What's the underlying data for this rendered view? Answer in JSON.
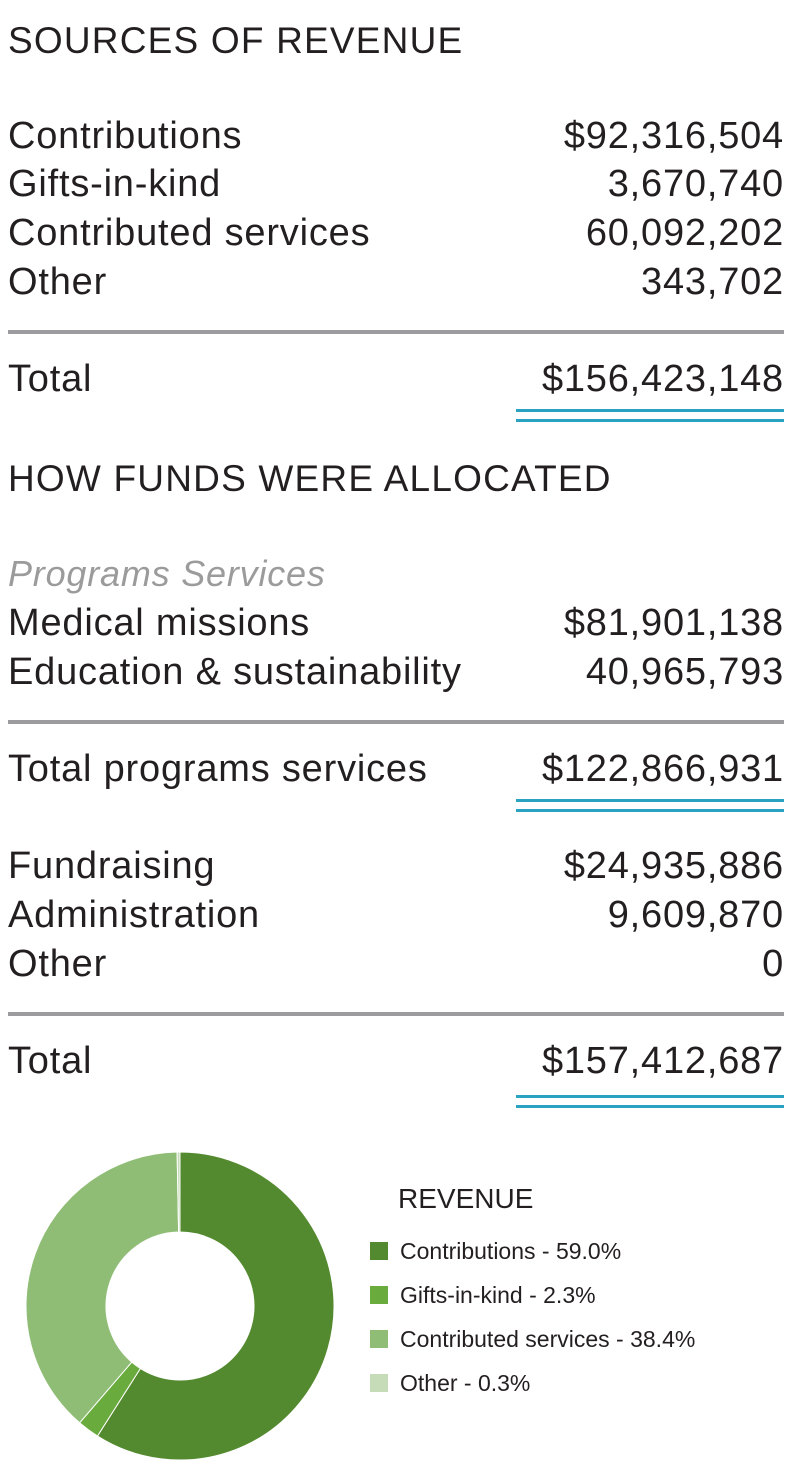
{
  "revenue_section": {
    "heading": "SOURCES OF REVENUE",
    "rows": [
      {
        "label": "Contributions",
        "value": "$92,316,504"
      },
      {
        "label": "Gifts-in-kind",
        "value": "3,670,740"
      },
      {
        "label": "Contributed services",
        "value": "60,092,202"
      },
      {
        "label": "Other",
        "value": "343,702"
      }
    ],
    "total_label": "Total",
    "total_value": "$156,423,148"
  },
  "allocation_section": {
    "heading": "HOW FUNDS WERE ALLOCATED",
    "subheading": "Programs Services",
    "program_rows": [
      {
        "label": "Medical missions",
        "value": "$81,901,138"
      },
      {
        "label": "Education & sustainability",
        "value": "40,965,793"
      }
    ],
    "program_total_label": "Total programs services",
    "program_total_value": "$122,866,931",
    "other_rows": [
      {
        "label": "Fundraising",
        "value": "$24,935,886"
      },
      {
        "label": "Administration",
        "value": "9,609,870"
      },
      {
        "label": "Other",
        "value": "0"
      }
    ],
    "total_label": "Total",
    "total_value": "$157,412,687"
  },
  "colors": {
    "text": "#231f20",
    "rule": "#9c9c9e",
    "double_underline": "#2aa3c2",
    "italic_subheading": "#9b9b9b"
  },
  "chart_data": {
    "type": "pie",
    "title": "REVENUE",
    "donut": true,
    "slices": [
      {
        "label": "Contributions - 59.0%",
        "value": 59.0,
        "color": "#548a2f"
      },
      {
        "label": "Gifts-in-kind - 2.3%",
        "value": 2.3,
        "color": "#6aab3e"
      },
      {
        "label": "Contributed services - 38.4%",
        "value": 38.4,
        "color": "#8fbd75"
      },
      {
        "label": "Other - 0.3%",
        "value": 0.3,
        "color": "#c6dcb8"
      }
    ],
    "legend_position": "right"
  }
}
